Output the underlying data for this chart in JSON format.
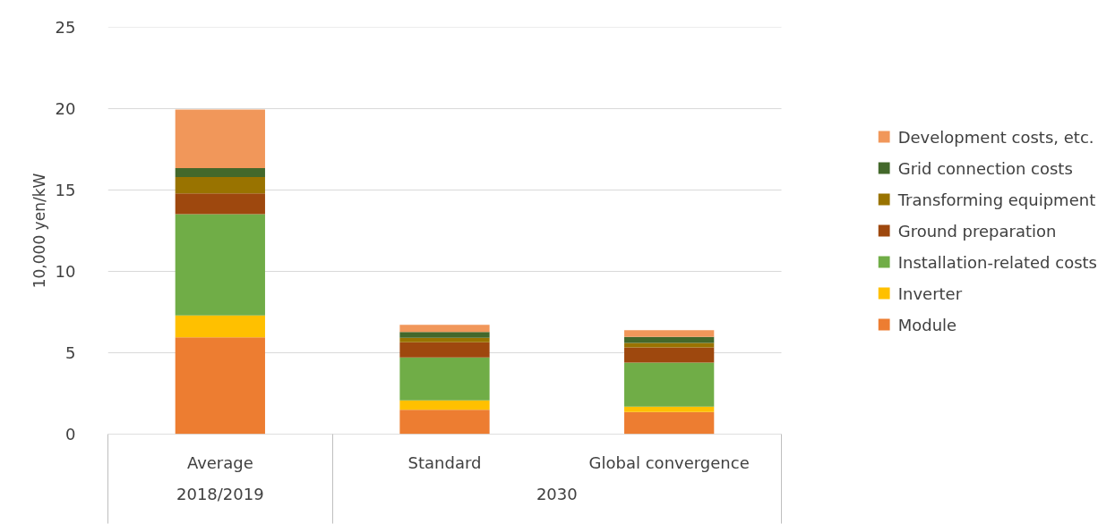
{
  "chart_data": {
    "type": "bar",
    "stacked": true,
    "ylabel": "10,000 yen/kW",
    "categories": [
      "Average",
      "Standard",
      "Global convergence"
    ],
    "annotations": [
      "2018/2019",
      "2030"
    ],
    "series": [
      {
        "name": "Module",
        "color": "#ed7d31",
        "values": [
          5.95,
          1.5,
          1.36
        ]
      },
      {
        "name": "Inverter",
        "color": "#ffc000",
        "values": [
          1.34,
          0.57,
          0.33
        ]
      },
      {
        "name": "Installation-related costs",
        "color": "#70ad47",
        "values": [
          6.23,
          2.64,
          2.71
        ]
      },
      {
        "name": "Ground preparation",
        "color": "#9e480e",
        "values": [
          1.28,
          0.93,
          0.93
        ]
      },
      {
        "name": "Transforming equipment",
        "color": "#997300",
        "values": [
          0.99,
          0.28,
          0.27
        ]
      },
      {
        "name": "Grid connection costs",
        "color": "#43682b",
        "values": [
          0.55,
          0.36,
          0.37
        ]
      },
      {
        "name": "Development costs, etc.",
        "color": "#f1975a",
        "values": [
          3.61,
          0.44,
          0.42
        ]
      }
    ],
    "ylim": [
      0,
      25
    ],
    "yticks": [
      0,
      5,
      10,
      15,
      20,
      25
    ],
    "grid": "y",
    "legend": "right"
  }
}
